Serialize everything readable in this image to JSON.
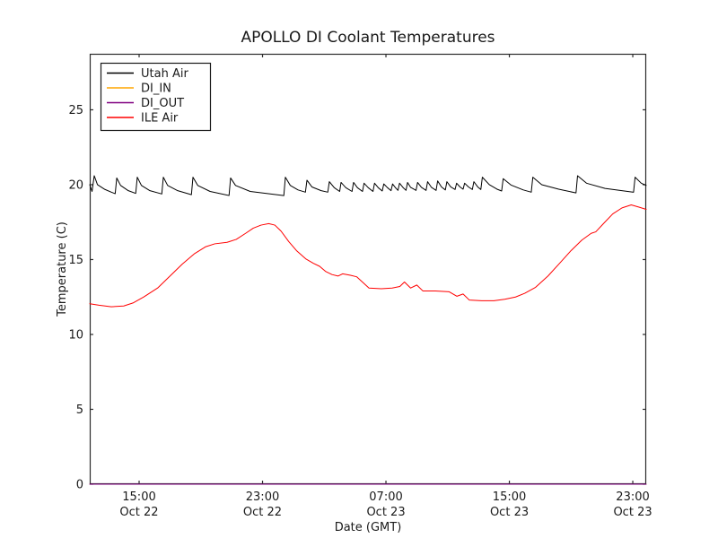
{
  "chart_data": {
    "type": "line",
    "title": "APOLLO DI Coolant Temperatures",
    "xlabel": "Date (GMT)",
    "ylabel": "Temperature (C)",
    "legend_position": "upper left",
    "grid": false,
    "xlim_hours_since_oct22_0000": [
      11.8,
      47.87
    ],
    "ylim": [
      0,
      28.74
    ],
    "x_ticks": [
      {
        "hour": 15,
        "time": "15:00",
        "date": "Oct 22"
      },
      {
        "hour": 23,
        "time": "23:00",
        "date": "Oct 22"
      },
      {
        "hour": 31,
        "time": "07:00",
        "date": "Oct 23"
      },
      {
        "hour": 39,
        "time": "15:00",
        "date": "Oct 23"
      },
      {
        "hour": 47,
        "time": "23:00",
        "date": "Oct 23"
      }
    ],
    "y_ticks": [
      {
        "v": 0,
        "label": "0"
      },
      {
        "v": 5,
        "label": "5"
      },
      {
        "v": 10,
        "label": "10"
      },
      {
        "v": 15,
        "label": "15"
      },
      {
        "v": 20,
        "label": "20"
      },
      {
        "v": 25,
        "label": "25"
      }
    ],
    "series": [
      {
        "name": "Utah Air",
        "color": "#000000",
        "points": [
          [
            11.8,
            20.0
          ],
          [
            11.95,
            19.55
          ],
          [
            12.09,
            20.6
          ],
          [
            12.3,
            20.0
          ],
          [
            12.75,
            19.7
          ],
          [
            13.2,
            19.5
          ],
          [
            13.45,
            19.4
          ],
          [
            13.55,
            20.45
          ],
          [
            13.8,
            19.95
          ],
          [
            14.3,
            19.6
          ],
          [
            14.78,
            19.42
          ],
          [
            14.88,
            20.5
          ],
          [
            15.15,
            19.95
          ],
          [
            15.7,
            19.6
          ],
          [
            16.47,
            19.38
          ],
          [
            16.57,
            20.5
          ],
          [
            16.85,
            19.95
          ],
          [
            17.5,
            19.6
          ],
          [
            18.39,
            19.33
          ],
          [
            18.49,
            20.5
          ],
          [
            18.8,
            19.95
          ],
          [
            19.6,
            19.55
          ],
          [
            20.83,
            19.28
          ],
          [
            20.93,
            20.45
          ],
          [
            21.25,
            19.95
          ],
          [
            22.2,
            19.55
          ],
          [
            24.38,
            19.27
          ],
          [
            24.48,
            20.5
          ],
          [
            24.8,
            19.95
          ],
          [
            25.3,
            19.65
          ],
          [
            25.78,
            19.5
          ],
          [
            25.88,
            20.3
          ],
          [
            26.2,
            19.85
          ],
          [
            26.8,
            19.6
          ],
          [
            27.23,
            19.5
          ],
          [
            27.33,
            20.2
          ],
          [
            27.65,
            19.8
          ],
          [
            28.0,
            19.55
          ],
          [
            28.09,
            20.15
          ],
          [
            28.4,
            19.8
          ],
          [
            28.8,
            19.55
          ],
          [
            28.9,
            20.15
          ],
          [
            29.15,
            19.8
          ],
          [
            29.48,
            19.55
          ],
          [
            29.58,
            20.1
          ],
          [
            29.85,
            19.8
          ],
          [
            30.16,
            19.55
          ],
          [
            30.26,
            20.1
          ],
          [
            30.5,
            19.8
          ],
          [
            30.76,
            19.58
          ],
          [
            30.86,
            20.05
          ],
          [
            31.1,
            19.8
          ],
          [
            31.33,
            19.6
          ],
          [
            31.43,
            20.05
          ],
          [
            31.6,
            19.82
          ],
          [
            31.78,
            19.62
          ],
          [
            31.88,
            20.1
          ],
          [
            32.1,
            19.82
          ],
          [
            32.3,
            19.62
          ],
          [
            32.4,
            20.15
          ],
          [
            32.6,
            19.82
          ],
          [
            32.95,
            19.62
          ],
          [
            33.05,
            20.15
          ],
          [
            33.3,
            19.82
          ],
          [
            33.6,
            19.62
          ],
          [
            33.7,
            20.2
          ],
          [
            33.95,
            19.82
          ],
          [
            34.25,
            19.62
          ],
          [
            34.35,
            20.25
          ],
          [
            34.6,
            19.85
          ],
          [
            34.85,
            19.65
          ],
          [
            34.95,
            20.2
          ],
          [
            35.2,
            19.85
          ],
          [
            35.48,
            19.68
          ],
          [
            35.58,
            20.1
          ],
          [
            35.8,
            19.85
          ],
          [
            36.0,
            19.7
          ],
          [
            36.1,
            20.1
          ],
          [
            36.35,
            19.85
          ],
          [
            36.6,
            19.68
          ],
          [
            36.7,
            20.2
          ],
          [
            36.95,
            19.85
          ],
          [
            37.15,
            19.68
          ],
          [
            37.25,
            20.5
          ],
          [
            37.7,
            20.0
          ],
          [
            38.2,
            19.7
          ],
          [
            38.5,
            19.58
          ],
          [
            38.6,
            20.4
          ],
          [
            39.1,
            19.98
          ],
          [
            39.9,
            19.65
          ],
          [
            40.42,
            19.5
          ],
          [
            40.52,
            20.5
          ],
          [
            41.1,
            20.0
          ],
          [
            42.2,
            19.7
          ],
          [
            43.32,
            19.45
          ],
          [
            43.42,
            20.6
          ],
          [
            44.0,
            20.1
          ],
          [
            45.2,
            19.75
          ],
          [
            47.05,
            19.5
          ],
          [
            47.15,
            20.5
          ],
          [
            47.55,
            20.1
          ],
          [
            47.87,
            19.95
          ]
        ]
      },
      {
        "name": "DI_IN",
        "color": "#ffa500",
        "points": [
          [
            11.8,
            0
          ],
          [
            47.87,
            0
          ]
        ]
      },
      {
        "name": "DI_OUT",
        "color": "#800080",
        "points": [
          [
            11.8,
            0
          ],
          [
            47.87,
            0
          ]
        ]
      },
      {
        "name": "ILE Air",
        "color": "#ff0000",
        "points": [
          [
            11.8,
            12.05
          ],
          [
            12.4,
            11.95
          ],
          [
            13.2,
            11.85
          ],
          [
            14.0,
            11.9
          ],
          [
            14.6,
            12.1
          ],
          [
            15.3,
            12.5
          ],
          [
            16.2,
            13.1
          ],
          [
            17.0,
            13.9
          ],
          [
            17.8,
            14.7
          ],
          [
            18.6,
            15.4
          ],
          [
            19.3,
            15.85
          ],
          [
            19.9,
            16.05
          ],
          [
            20.7,
            16.15
          ],
          [
            21.3,
            16.35
          ],
          [
            21.9,
            16.75
          ],
          [
            22.4,
            17.1
          ],
          [
            22.9,
            17.3
          ],
          [
            23.4,
            17.4
          ],
          [
            23.8,
            17.3
          ],
          [
            24.2,
            16.9
          ],
          [
            24.7,
            16.2
          ],
          [
            25.2,
            15.6
          ],
          [
            25.8,
            15.05
          ],
          [
            26.3,
            14.75
          ],
          [
            26.7,
            14.55
          ],
          [
            27.1,
            14.2
          ],
          [
            27.5,
            14.0
          ],
          [
            27.9,
            13.9
          ],
          [
            28.2,
            14.05
          ],
          [
            28.7,
            13.95
          ],
          [
            29.1,
            13.85
          ],
          [
            29.9,
            13.1
          ],
          [
            30.7,
            13.05
          ],
          [
            31.4,
            13.1
          ],
          [
            31.9,
            13.2
          ],
          [
            32.2,
            13.5
          ],
          [
            32.6,
            13.1
          ],
          [
            33.0,
            13.3
          ],
          [
            33.4,
            12.9
          ],
          [
            34.2,
            12.9
          ],
          [
            35.1,
            12.85
          ],
          [
            35.6,
            12.55
          ],
          [
            36.0,
            12.7
          ],
          [
            36.4,
            12.3
          ],
          [
            37.2,
            12.25
          ],
          [
            38.0,
            12.25
          ],
          [
            38.7,
            12.35
          ],
          [
            39.4,
            12.5
          ],
          [
            40.0,
            12.75
          ],
          [
            40.7,
            13.15
          ],
          [
            41.5,
            13.9
          ],
          [
            42.3,
            14.8
          ],
          [
            43.0,
            15.6
          ],
          [
            43.7,
            16.3
          ],
          [
            44.3,
            16.75
          ],
          [
            44.6,
            16.85
          ],
          [
            45.1,
            17.4
          ],
          [
            45.7,
            18.05
          ],
          [
            46.3,
            18.45
          ],
          [
            46.9,
            18.65
          ],
          [
            47.4,
            18.5
          ],
          [
            47.87,
            18.35
          ]
        ]
      }
    ]
  }
}
